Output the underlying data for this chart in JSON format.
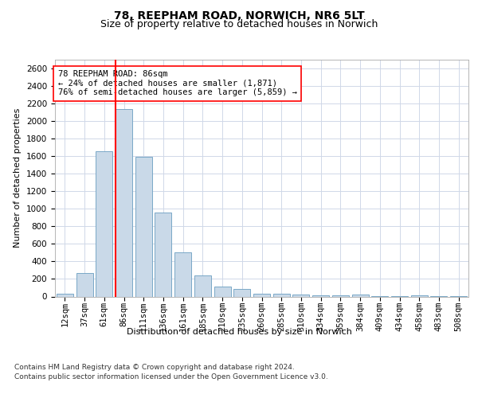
{
  "title": "78, REEPHAM ROAD, NORWICH, NR6 5LT",
  "subtitle": "Size of property relative to detached houses in Norwich",
  "xlabel": "Distribution of detached houses by size in Norwich",
  "ylabel": "Number of detached properties",
  "categories": [
    "12sqm",
    "37sqm",
    "61sqm",
    "86sqm",
    "111sqm",
    "136sqm",
    "161sqm",
    "185sqm",
    "210sqm",
    "235sqm",
    "260sqm",
    "285sqm",
    "310sqm",
    "334sqm",
    "359sqm",
    "384sqm",
    "409sqm",
    "434sqm",
    "458sqm",
    "483sqm",
    "508sqm"
  ],
  "values": [
    30,
    270,
    1660,
    2140,
    1590,
    960,
    500,
    245,
    115,
    90,
    35,
    30,
    20,
    15,
    10,
    20,
    5,
    5,
    15,
    5,
    5
  ],
  "bar_color": "#c9d9e8",
  "bar_edge_color": "#6a9ec0",
  "vline_x_index": 3,
  "vline_color": "red",
  "annotation_text": "78 REEPHAM ROAD: 86sqm\n← 24% of detached houses are smaller (1,871)\n76% of semi-detached houses are larger (5,859) →",
  "annotation_box_color": "white",
  "annotation_box_edge_color": "red",
  "ylim": [
    0,
    2700
  ],
  "yticks": [
    0,
    200,
    400,
    600,
    800,
    1000,
    1200,
    1400,
    1600,
    1800,
    2000,
    2200,
    2400,
    2600
  ],
  "footer_line1": "Contains HM Land Registry data © Crown copyright and database right 2024.",
  "footer_line2": "Contains public sector information licensed under the Open Government Licence v3.0.",
  "title_fontsize": 10,
  "subtitle_fontsize": 9,
  "axis_label_fontsize": 8,
  "tick_fontsize": 7.5,
  "annotation_fontsize": 7.5,
  "footer_fontsize": 6.5,
  "background_color": "#ffffff",
  "grid_color": "#d0d8e8"
}
